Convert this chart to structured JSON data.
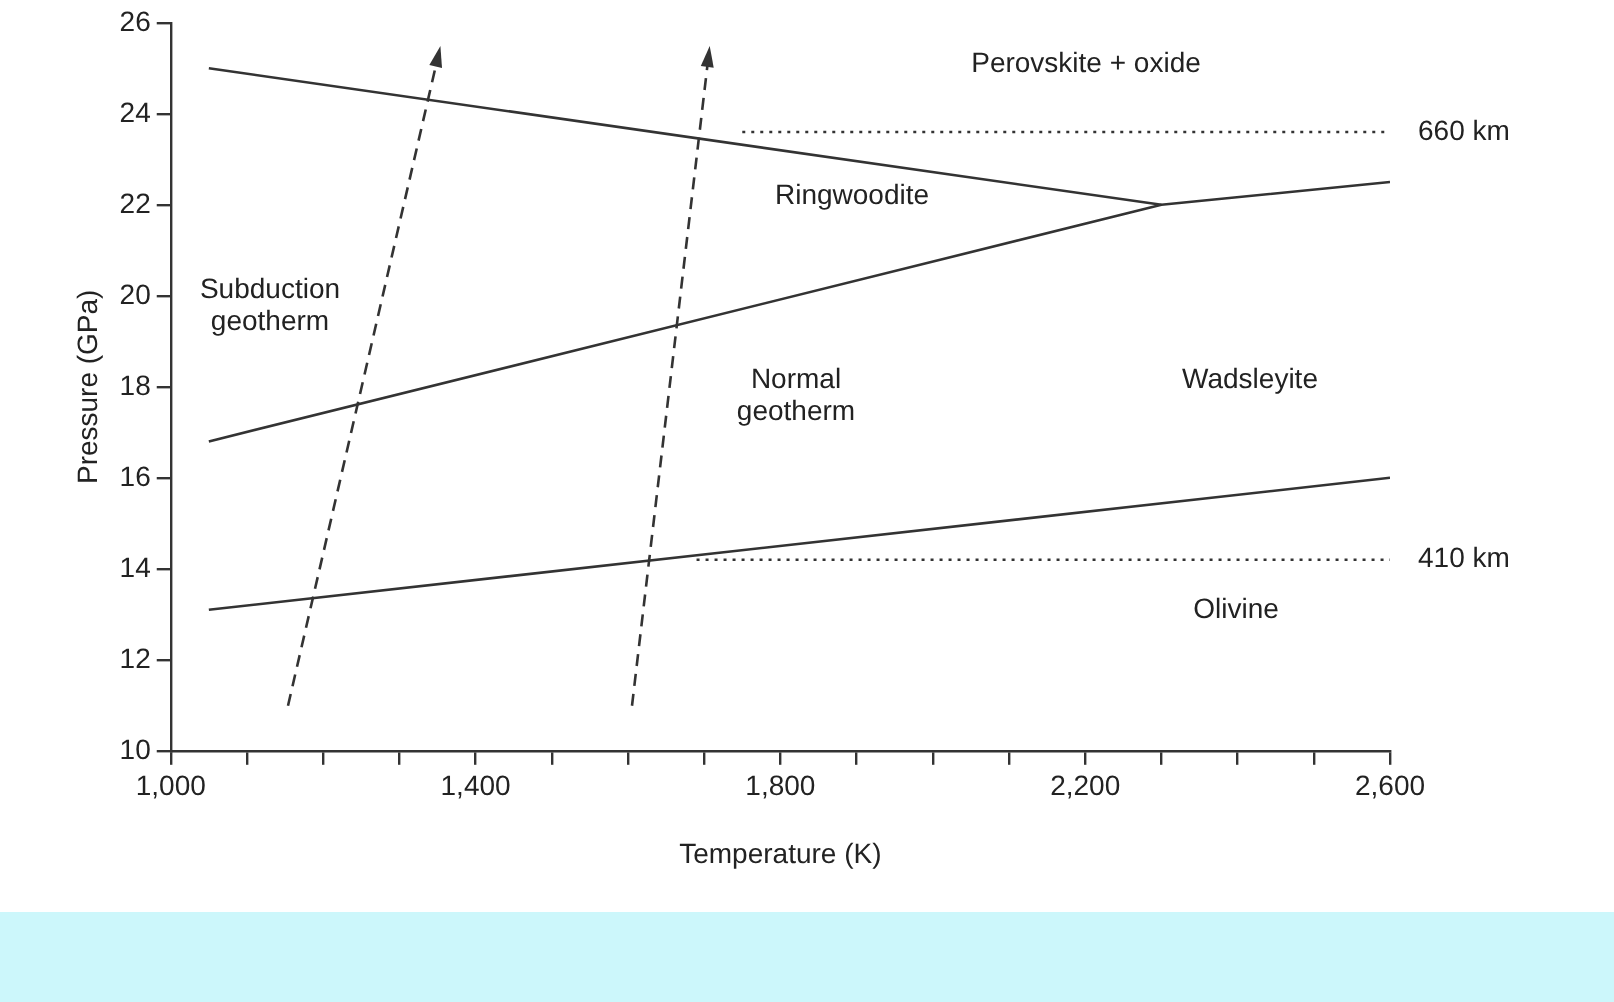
{
  "chart_data": {
    "type": "line",
    "xlabel": "Temperature (K)",
    "ylabel": "Pressure (GPa)",
    "xlim": [
      1000,
      2600
    ],
    "ylim": [
      10,
      26
    ],
    "xticks": [
      {
        "value": 1000,
        "label": "1,000"
      },
      {
        "value": 1100,
        "label": null
      },
      {
        "value": 1200,
        "label": null
      },
      {
        "value": 1300,
        "label": null
      },
      {
        "value": 1400,
        "label": "1,400"
      },
      {
        "value": 1500,
        "label": null
      },
      {
        "value": 1600,
        "label": null
      },
      {
        "value": 1700,
        "label": null
      },
      {
        "value": 1800,
        "label": "1,800"
      },
      {
        "value": 1900,
        "label": null
      },
      {
        "value": 2000,
        "label": null
      },
      {
        "value": 2100,
        "label": null
      },
      {
        "value": 2200,
        "label": "2,200"
      },
      {
        "value": 2300,
        "label": null
      },
      {
        "value": 2400,
        "label": null
      },
      {
        "value": 2500,
        "label": null
      },
      {
        "value": 2600,
        "label": "2,600"
      }
    ],
    "yticks": [
      10,
      12,
      14,
      16,
      18,
      20,
      22,
      24,
      26
    ],
    "grid": false,
    "legend": false,
    "marker": "none",
    "series": [
      {
        "color": "#333333",
        "x": [
          1050,
          2300
        ],
        "values": [
          25.0,
          22.0
        ],
        "line_style": "solid"
      },
      {
        "color": "#333333",
        "x": [
          1050,
          2300,
          2600
        ],
        "values": [
          16.8,
          22.0,
          22.5
        ],
        "line_style": "solid"
      },
      {
        "color": "#333333",
        "x": [
          1050,
          2600
        ],
        "values": [
          13.1,
          16.0
        ],
        "line_style": "solid"
      },
      {
        "name": "660 km",
        "color": "#333333",
        "x": [
          1750,
          2600
        ],
        "values": [
          23.6,
          23.6
        ],
        "line_style": "dotted"
      },
      {
        "name": "410 km",
        "color": "#333333",
        "x": [
          1690,
          2600
        ],
        "values": [
          14.2,
          14.2
        ],
        "line_style": "dotted"
      }
    ],
    "annotations": [
      "Perovskite + oxide",
      "Ringwoodite",
      "Subduction\ngeotherm",
      "Normal\ngeotherm",
      "Wadsleyite",
      "Olivine"
    ]
  }
}
